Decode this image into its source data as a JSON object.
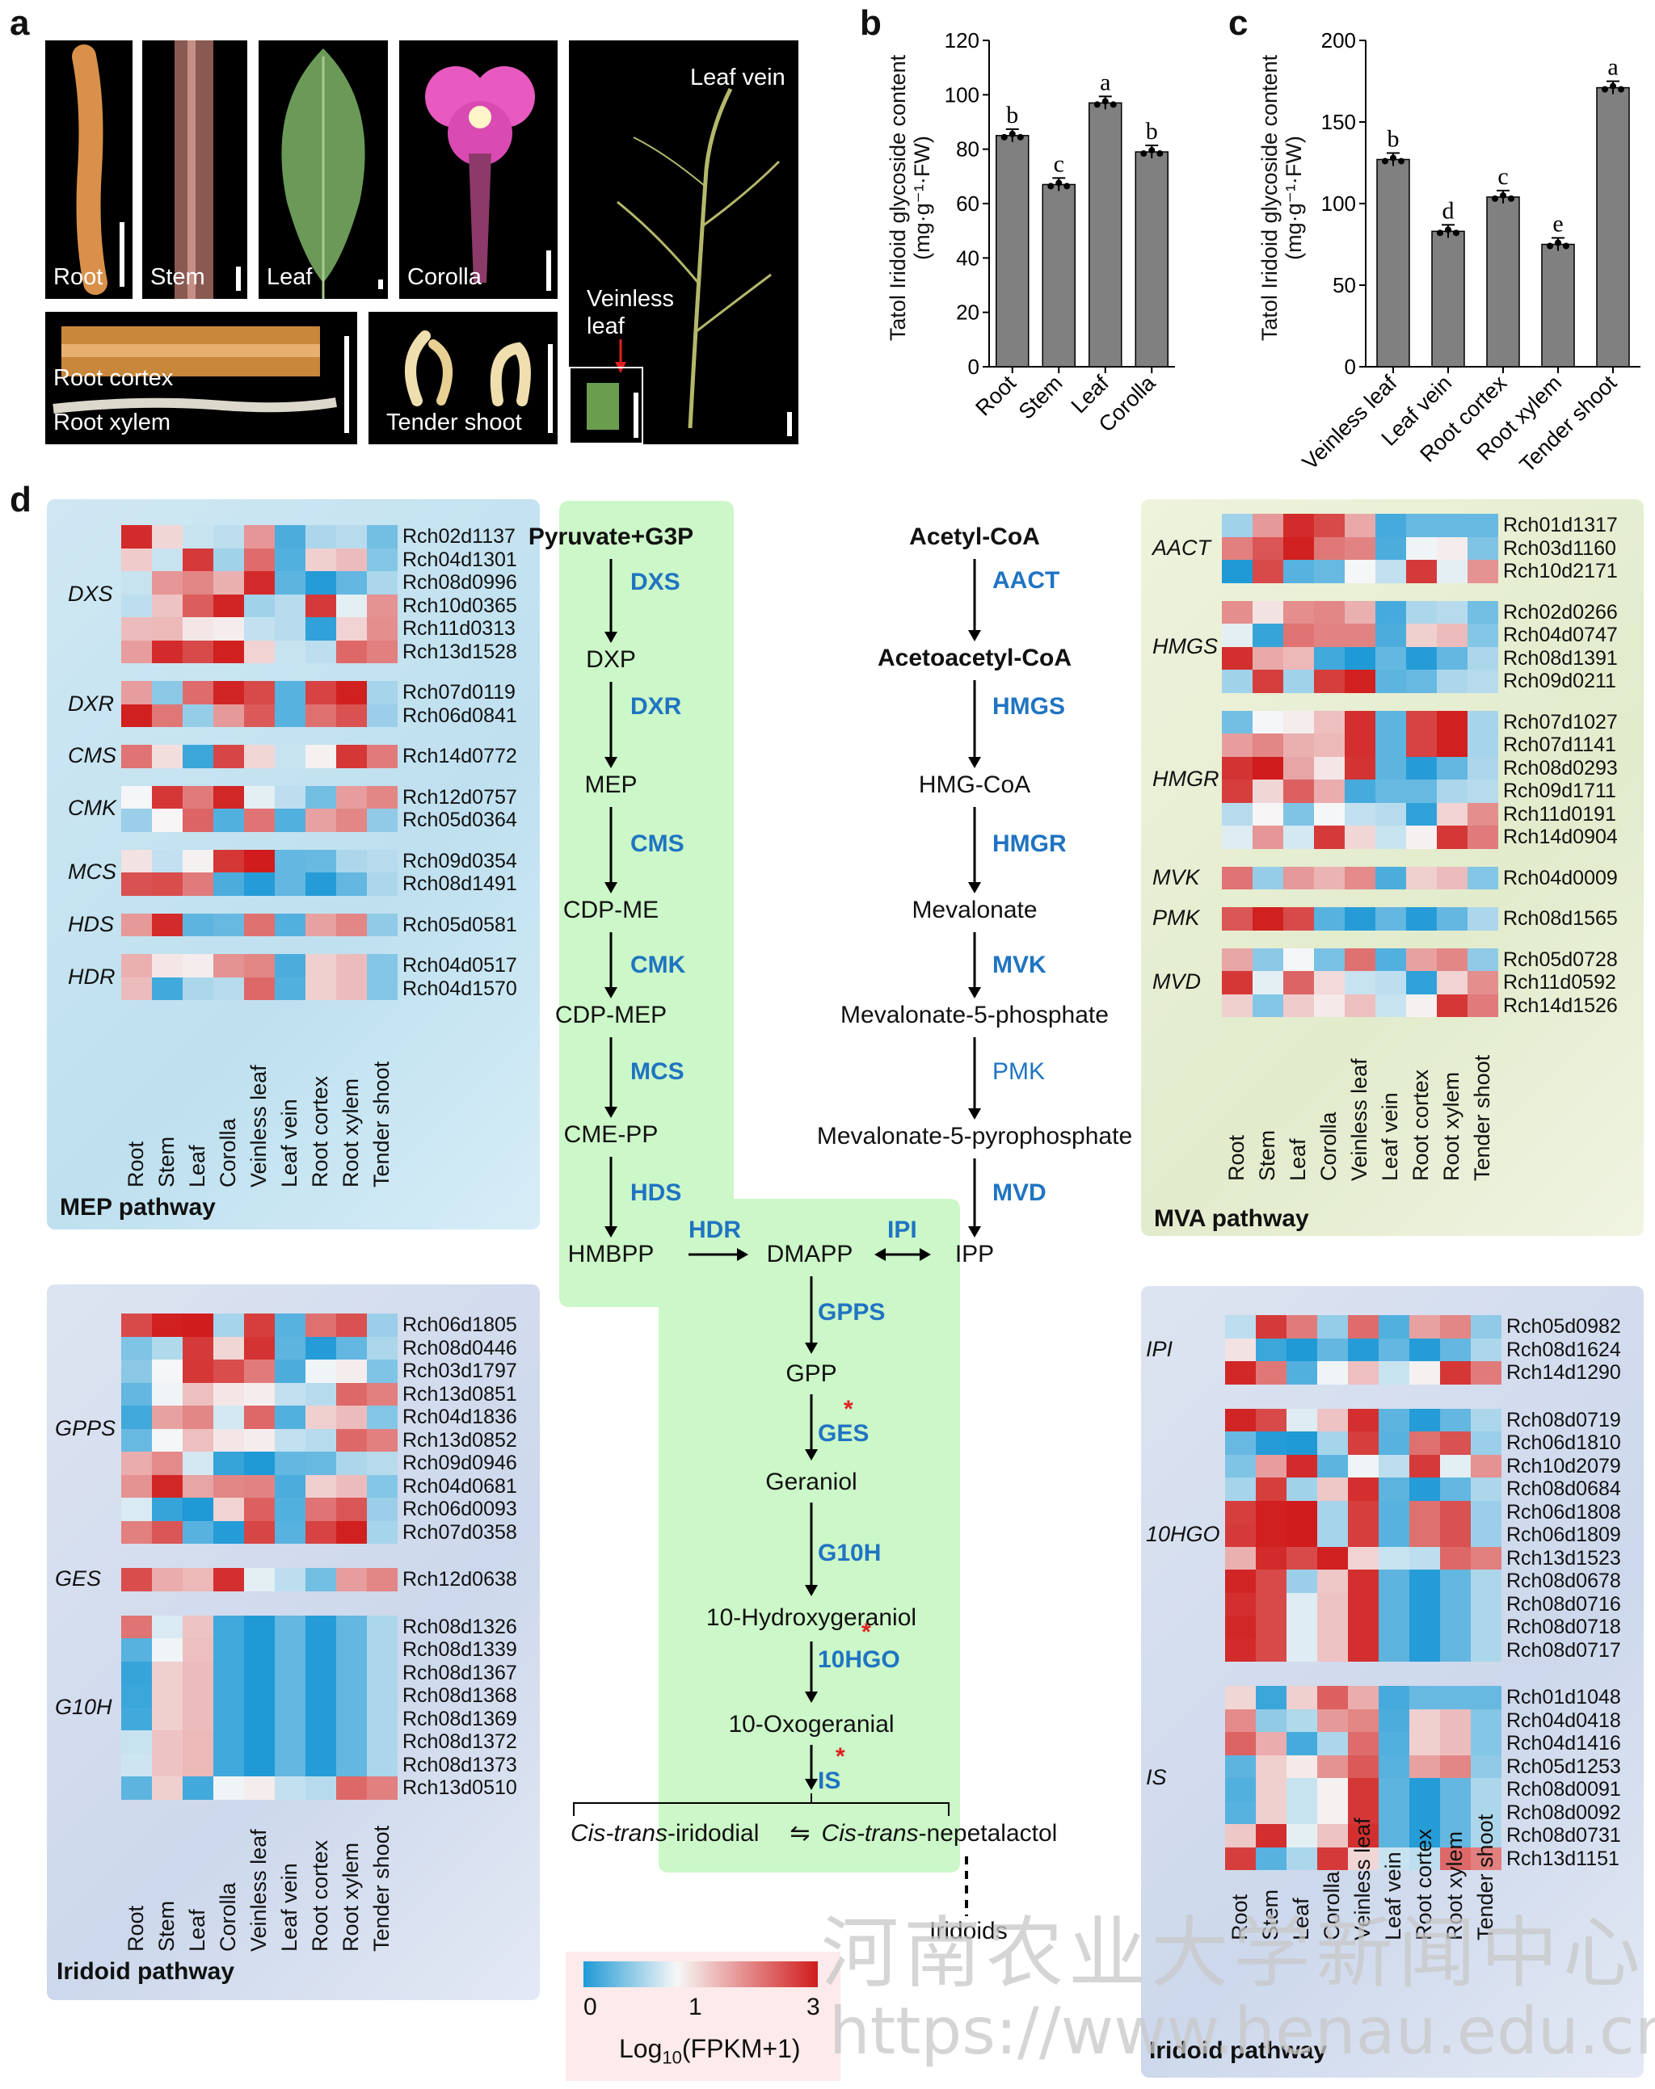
{
  "panels": {
    "a": "a",
    "b": "b",
    "c": "c",
    "d": "d"
  },
  "photos": {
    "root": "Root",
    "stem": "Stem",
    "leaf": "Leaf",
    "corolla": "Corolla",
    "leaf_vein": "Leaf vein",
    "veinless_leaf": "Veinless leaf",
    "root_cortex": "Root cortex",
    "root_xylem": "Root xylem",
    "tender_shoot": "Tender shoot"
  },
  "chart_b": {
    "type": "bar",
    "ylabel_line1": "Tatol  Iridoid glycoside content",
    "ylabel_line2": "(mg·g⁻¹·FW)",
    "ylim": [
      0,
      120
    ],
    "yticks": [
      "0",
      "20",
      "40",
      "60",
      "80",
      "100",
      "120"
    ],
    "categories": [
      "Root",
      "Stem",
      "Leaf",
      "Corolla"
    ],
    "values": [
      85,
      67,
      97,
      79
    ],
    "letters": [
      "b",
      "c",
      "a",
      "b"
    ]
  },
  "chart_c": {
    "type": "bar",
    "ylabel_line1": "Tatol  Iridoid glycoside content",
    "ylabel_line2": "(mg·g⁻¹·FW)",
    "ylim": [
      0,
      200
    ],
    "yticks": [
      "0",
      "50",
      "100",
      "150",
      "200"
    ],
    "categories": [
      "Veinless leaf",
      "Leaf vein",
      "Root cortex",
      "Root xylem",
      "Tender shoot"
    ],
    "values": [
      127,
      83,
      104,
      75,
      171
    ],
    "letters": [
      "b",
      "d",
      "c",
      "e",
      "a"
    ]
  },
  "tissues": [
    "Root",
    "Stem",
    "Leaf",
    "Corolla",
    "Veinless leaf",
    "Leaf vein",
    "Root cortex",
    "Root xylem",
    "Tender shoot"
  ],
  "mep": {
    "title": "MEP pathway",
    "groups": [
      {
        "enzyme": "DXS",
        "genes": [
          "Rch02d1137",
          "Rch04d1301",
          "Rch08d0996",
          "Rch10d0365",
          "Rch11d0313",
          "Rch13d1528"
        ]
      },
      {
        "enzyme": "DXR",
        "genes": [
          "Rch07d0119",
          "Rch06d0841"
        ]
      },
      {
        "enzyme": "CMS",
        "genes": [
          "Rch14d0772"
        ]
      },
      {
        "enzyme": "CMK",
        "genes": [
          "Rch12d0757",
          "Rch05d0364"
        ]
      },
      {
        "enzyme": "MCS",
        "genes": [
          "Rch09d0354",
          "Rch08d1491"
        ]
      },
      {
        "enzyme": "HDS",
        "genes": [
          "Rch05d0581"
        ]
      },
      {
        "enzyme": "HDR",
        "genes": [
          "Rch04d0517",
          "Rch04d1570"
        ]
      }
    ]
  },
  "mva": {
    "title": "MVA pathway",
    "groups": [
      {
        "enzyme": "AACT",
        "genes": [
          "Rch01d1317",
          "Rch03d1160",
          "Rch10d2171"
        ]
      },
      {
        "enzyme": "HMGS",
        "genes": [
          "Rch02d0266",
          "Rch04d0747",
          "Rch08d1391",
          "Rch09d0211"
        ]
      },
      {
        "enzyme": "HMGR",
        "genes": [
          "Rch07d1027",
          "Rch07d1141",
          "Rch08d0293",
          "Rch09d1711",
          "Rch11d0191",
          "Rch14d0904"
        ]
      },
      {
        "enzyme": "MVK",
        "genes": [
          "Rch04d0009"
        ]
      },
      {
        "enzyme": "PMK",
        "genes": [
          "Rch08d1565"
        ]
      },
      {
        "enzyme": "MVD",
        "genes": [
          "Rch05d0728",
          "Rch11d0592",
          "Rch14d1526"
        ]
      }
    ]
  },
  "irid_left": {
    "title": "Iridoid pathway",
    "groups": [
      {
        "enzyme": "GPPS",
        "genes": [
          "Rch06d1805",
          "Rch08d0446",
          "Rch03d1797",
          "Rch13d0851",
          "Rch04d1836",
          "Rch13d0852",
          "Rch09d0946",
          "Rch04d0681",
          "Rch06d0093",
          "Rch07d0358"
        ]
      },
      {
        "enzyme": "GES",
        "genes": [
          "Rch12d0638"
        ]
      },
      {
        "enzyme": "G10H",
        "genes": [
          "Rch08d1326",
          "Rch08d1339",
          "Rch08d1367",
          "Rch08d1368",
          "Rch08d1369",
          "Rch08d1372",
          "Rch08d1373",
          "Rch13d0510"
        ]
      }
    ]
  },
  "irid_right": {
    "title": "Iridoid pathway",
    "groups": [
      {
        "enzyme": "IPI",
        "genes": [
          "Rch05d0982",
          "Rch08d1624",
          "Rch14d1290"
        ]
      },
      {
        "enzyme": "10HGO",
        "genes": [
          "Rch08d0719",
          "Rch06d1810",
          "Rch10d2079",
          "Rch08d0684",
          "Rch06d1808",
          "Rch06d1809",
          "Rch13d1523",
          "Rch08d0678",
          "Rch08d0716",
          "Rch08d0718",
          "Rch08d0717"
        ]
      },
      {
        "enzyme": "IS",
        "genes": [
          "Rch01d1048",
          "Rch04d0418",
          "Rch04d1416",
          "Rch05d1253",
          "Rch08d0091",
          "Rch08d0092",
          "Rch08d0731",
          "Rch13d1151"
        ]
      }
    ]
  },
  "pathway": {
    "mep_metabolites": [
      "Pyruvate+G3P",
      "DXP",
      "MEP",
      "CDP-ME",
      "CDP-MEP",
      "CME-PP",
      "HMBPP"
    ],
    "mep_enzymes": [
      "DXS",
      "DXR",
      "CMS",
      "CMK",
      "MCS",
      "HDS"
    ],
    "mva_metabolites": [
      "Acetyl-CoA",
      "Acetoacetyl-CoA",
      "HMG-CoA",
      "Mevalonate",
      "Mevalonate-5-phosphate",
      "Mevalonate-5-pyrophosphate",
      "IPP"
    ],
    "mva_enzymes": [
      "AACT",
      "HMGS",
      "HMGR",
      "MVK",
      "PMK",
      "MVD"
    ],
    "hdr": "HDR",
    "dmapp": "DMAPP",
    "ipi": "IPI",
    "irid_metabolites": [
      "GPP",
      "Geraniol",
      "10-Hydroxygeraniol",
      "10-Oxogeranial"
    ],
    "irid_enzymes": [
      "GPPS",
      "GES",
      "G10H",
      "10HGO",
      "IS"
    ],
    "star": "*",
    "cis_a": "Cis-trans",
    "iridodial": "-iridodial",
    "eq": "⇋",
    "cis_b": "Cis-trans",
    "nepetalactol": "-nepetalactol",
    "iridoids": "Iridoids"
  },
  "legend": {
    "ticks": [
      "0",
      "1",
      "3"
    ],
    "label_main": "Log",
    "label_sub": "10",
    "label_end": "(FPKM+1)"
  },
  "watermark": {
    "cn": "河南农业大学新闻中心",
    "url": "https://www.henau.edu.cn"
  },
  "colors": {
    "low": "#1f9ad6",
    "mid": "#f7f7f7",
    "high": "#d01c1c",
    "bar": "#808080"
  }
}
